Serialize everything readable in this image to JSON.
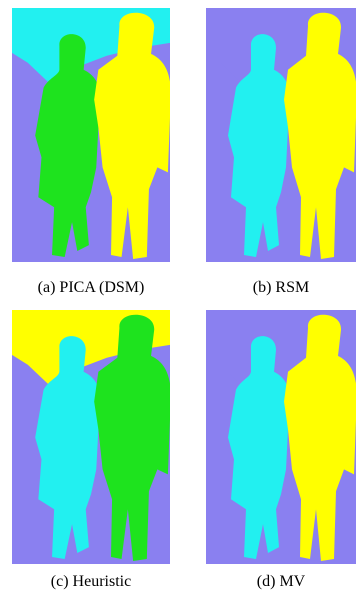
{
  "panels": [
    {
      "caption": "(a) PICA (DSM)"
    },
    {
      "caption": "(b) RSM"
    },
    {
      "caption": "(c) Heuristic"
    },
    {
      "caption": "(d) MV"
    }
  ]
}
